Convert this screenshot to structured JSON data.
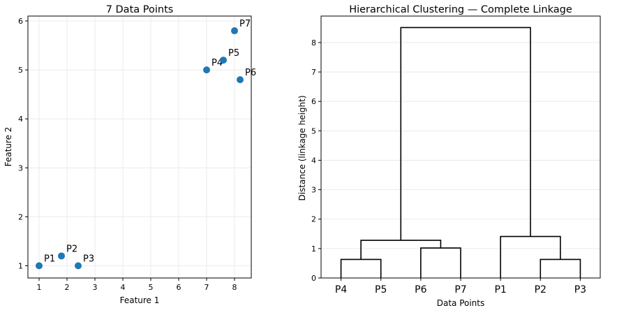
{
  "chart_data": [
    {
      "type": "scatter",
      "title": "7 Data Points",
      "xlabel": "Feature 1",
      "ylabel": "Feature 2",
      "xlim": [
        0.6,
        8.6
      ],
      "ylim": [
        0.75,
        6.1
      ],
      "xticks": [
        "1",
        "2",
        "3",
        "4",
        "5",
        "6",
        "7",
        "8"
      ],
      "yticks": [
        "1",
        "2",
        "3",
        "4",
        "5",
        "6"
      ],
      "grid": true,
      "marker_color": "#1f77b4",
      "points": [
        {
          "label": "P1",
          "x": 1.0,
          "y": 1.0
        },
        {
          "label": "P2",
          "x": 1.8,
          "y": 1.2
        },
        {
          "label": "P3",
          "x": 2.4,
          "y": 1.0
        },
        {
          "label": "P4",
          "x": 7.0,
          "y": 5.0
        },
        {
          "label": "P5",
          "x": 7.6,
          "y": 5.2
        },
        {
          "label": "P6",
          "x": 8.2,
          "y": 4.8
        },
        {
          "label": "P7",
          "x": 8.0,
          "y": 5.8
        }
      ]
    },
    {
      "type": "dendrogram",
      "title": "Hierarchical Clustering — Complete Linkage",
      "xlabel": "Data Points",
      "ylabel": "Distance (linkage height)",
      "ylim": [
        0,
        8.9
      ],
      "yticks": [
        "0",
        "1",
        "2",
        "3",
        "4",
        "5",
        "6",
        "7",
        "8"
      ],
      "grid": true,
      "leaf_order": [
        "P4",
        "P5",
        "P6",
        "P7",
        "P1",
        "P2",
        "P3"
      ],
      "merges": [
        {
          "left": "P4",
          "right": "P5",
          "height": 0.63
        },
        {
          "left": "P6",
          "right": "P7",
          "height": 1.02
        },
        {
          "left": "P4+P5",
          "right": "P6+P7",
          "height": 1.28
        },
        {
          "left": "P2",
          "right": "P3",
          "height": 0.63
        },
        {
          "left": "P1",
          "right": "P2+P3",
          "height": 1.41
        },
        {
          "left": "P4+P5+P6+P7",
          "right": "P1+P2+P3",
          "height": 8.51
        }
      ]
    }
  ]
}
